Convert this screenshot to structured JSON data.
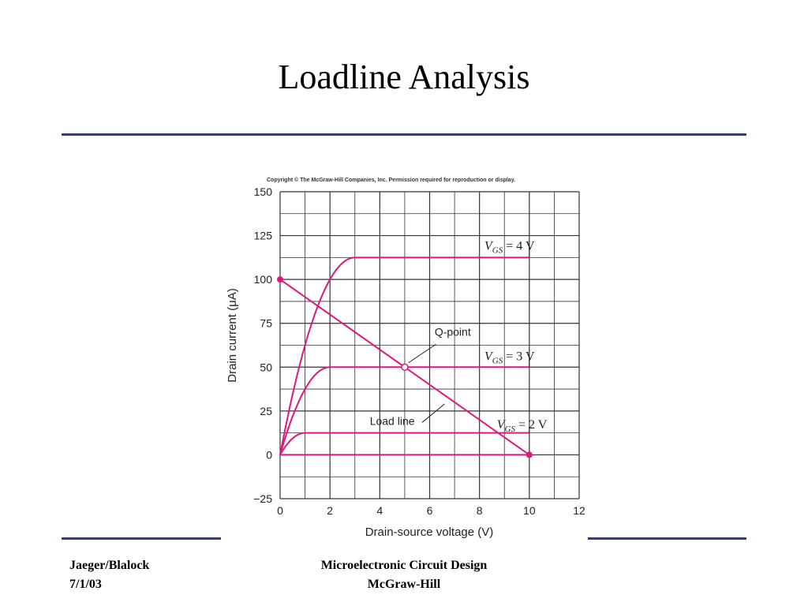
{
  "slide": {
    "title": "Loadline Analysis"
  },
  "footer": {
    "author": "Jaeger/Blalock",
    "date": "7/1/03",
    "course": "Microelectronic Circuit Design",
    "publisher": "McGraw-Hill"
  },
  "colors": {
    "rule": "#2f3b96",
    "curve": "#e0177a",
    "grid": "#333333"
  },
  "chart_data": {
    "type": "line",
    "copyright": "Copyright © The McGraw-Hill Companies, Inc. Permission required for reproduction or display.",
    "xlabel": "Drain-source voltage (V)",
    "ylabel": "Drain current (μA)",
    "xlim": [
      0,
      12
    ],
    "ylim": [
      -25,
      150
    ],
    "x_ticks": [
      "0",
      "2",
      "4",
      "6",
      "8",
      "10",
      "12"
    ],
    "y_ticks": [
      "150",
      "125",
      "100",
      "75",
      "50",
      "25",
      "0",
      "−25"
    ],
    "grid": true,
    "series": [
      {
        "kind": "curve",
        "sat_current": 112.5,
        "sat_voltage": 3,
        "end_voltage": 10
      },
      {
        "kind": "curve",
        "sat_current": 50,
        "sat_voltage": 2,
        "end_voltage": 10
      },
      {
        "kind": "curve",
        "sat_current": 12.5,
        "sat_voltage": 1,
        "end_voltage": 10
      },
      {
        "kind": "curve",
        "sat_current": 0,
        "sat_voltage": 0,
        "end_voltage": 10
      }
    ],
    "load_line": {
      "x": [
        0,
        10
      ],
      "y": [
        100,
        0
      ]
    },
    "q_point": {
      "x": 5,
      "y": 50
    },
    "annotations": [
      {
        "id": "vgs4",
        "subscript": "GS",
        "value": "= 4 V",
        "x": 8.2,
        "y": 117
      },
      {
        "id": "vgs3",
        "subscript": "GS",
        "value": "= 3 V",
        "x": 8.2,
        "y": 54
      },
      {
        "id": "vgs2",
        "subscript": "GS",
        "value": "= 2 V",
        "x": 8.7,
        "y": 15
      },
      {
        "id": "qpoint",
        "text": "Q-point",
        "x": 6.2,
        "y": 68
      },
      {
        "id": "loadline",
        "text": "Load line",
        "x": 3.6,
        "y": 17
      }
    ]
  }
}
